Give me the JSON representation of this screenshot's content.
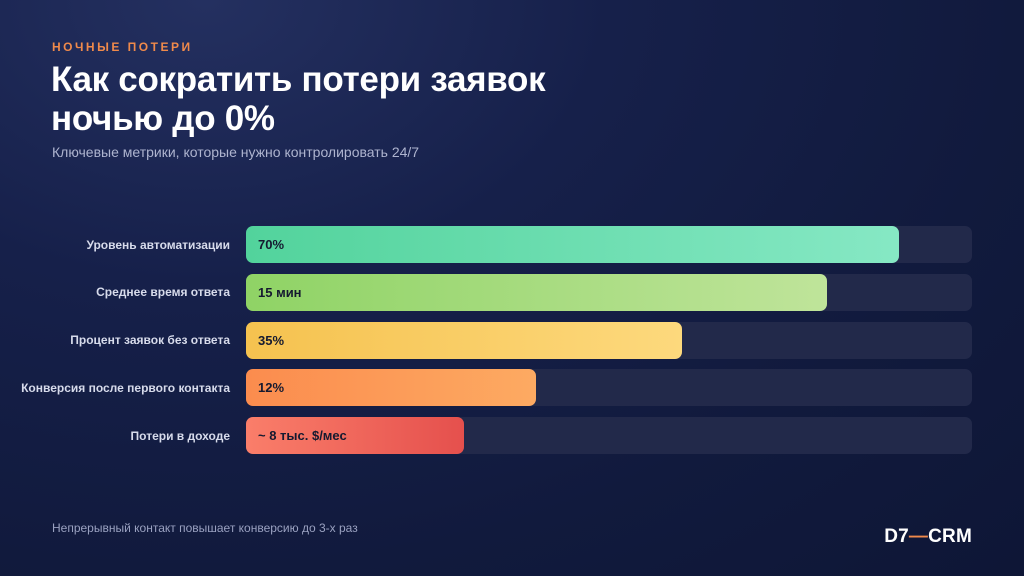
{
  "header": {
    "eyebrow": "НОЧНЫЕ ПОТЕРИ",
    "title": "Как сократить потери заявок ночью до 0%",
    "subtitle": "Ключевые метрики, которые нужно контролировать 24/7"
  },
  "chart_data": {
    "type": "bar",
    "orientation": "horizontal",
    "categories": [
      "Уровень автоматизации",
      "Среднее время ответа",
      "Процент заявок без ответа",
      "Конверсия после первого контакта",
      "Потери в доходе"
    ],
    "value_labels": [
      "70%",
      "15 мин",
      "35%",
      "12%",
      "~ 8 тыс. $/мес"
    ],
    "fill_fractions": [
      0.9,
      0.8,
      0.6,
      0.4,
      0.3
    ],
    "colors": [
      [
        "#52d39c",
        "#86e8c4"
      ],
      [
        "#8fd365",
        "#bfe49a"
      ],
      [
        "#f5c24f",
        "#fdd97d"
      ],
      [
        "#fb8c4e",
        "#fdaa62"
      ],
      [
        "#fa7e6a",
        "#e5504d"
      ]
    ],
    "track_color": "#22294a"
  },
  "footer": {
    "note": "Непрерывный контакт повышает конверсию до 3-х раз",
    "brand_left": "D7",
    "brand_dash": "—",
    "brand_right": "CRM"
  }
}
